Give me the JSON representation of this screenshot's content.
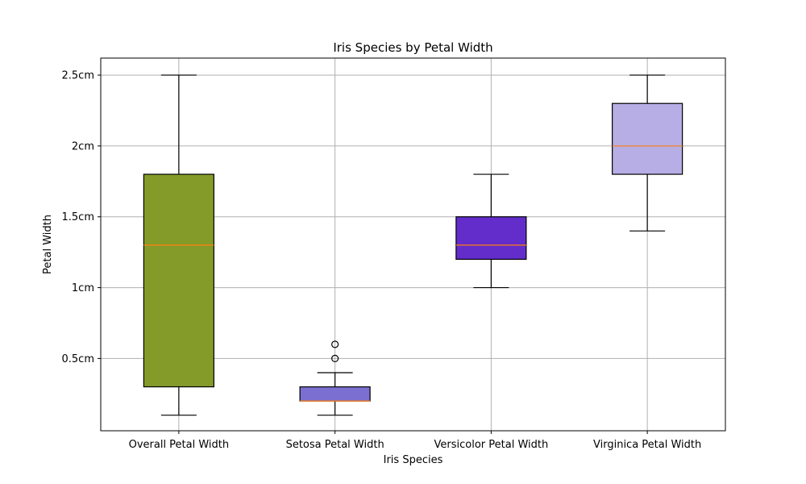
{
  "chart_data": {
    "type": "box",
    "title": "Iris Species by Petal Width",
    "xlabel": "Iris Species",
    "ylabel": "Petal Width",
    "ylim": [
      -0.01,
      2.62
    ],
    "yticks": [
      0.5,
      1.0,
      1.5,
      2.0,
      2.5
    ],
    "ytick_labels": [
      "0.5cm",
      "1cm",
      "1.5cm",
      "2cm",
      "2.5cm"
    ],
    "grid": true,
    "median_color": "#ff7f0e",
    "categories": [
      "Overall Petal Width",
      "Setosa Petal Width",
      "Versicolor Petal Width",
      "Virginica Petal Width"
    ],
    "boxes": [
      {
        "whisker_low": 0.1,
        "q1": 0.3,
        "median": 1.3,
        "q3": 1.8,
        "whisker_high": 2.5,
        "outliers": [],
        "color": "#849b2a"
      },
      {
        "whisker_low": 0.1,
        "q1": 0.2,
        "median": 0.2,
        "q3": 0.3,
        "whisker_high": 0.4,
        "outliers": [
          0.5,
          0.6
        ],
        "color": "#7b6fcf"
      },
      {
        "whisker_low": 1.0,
        "q1": 1.2,
        "median": 1.3,
        "q3": 1.5,
        "whisker_high": 1.8,
        "outliers": [],
        "color": "#632dcc"
      },
      {
        "whisker_low": 1.4,
        "q1": 1.8,
        "median": 2.0,
        "q3": 2.3,
        "whisker_high": 2.5,
        "outliers": [],
        "color": "#b7aee6"
      }
    ]
  }
}
